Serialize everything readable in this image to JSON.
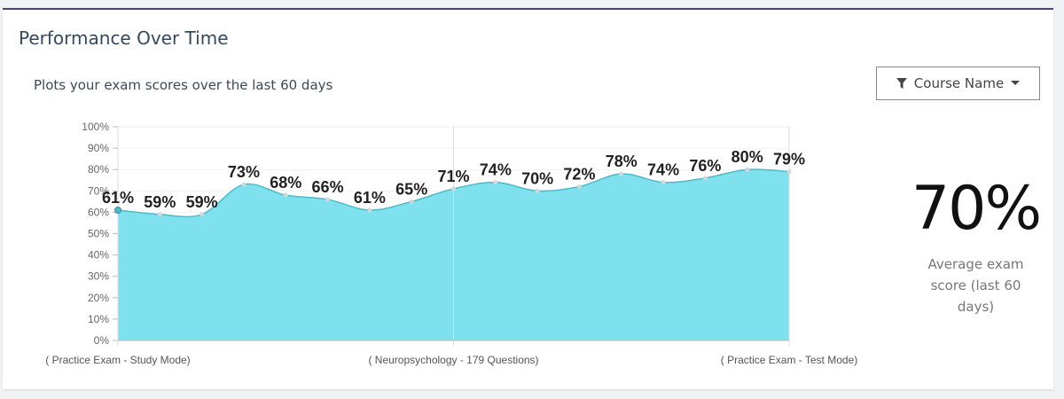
{
  "header": {
    "title": "Performance Over Time"
  },
  "subtitle": "Plots your exam scores over the last 60 days",
  "filter": {
    "label": "Course Name"
  },
  "chart_data": {
    "type": "area",
    "categories": [
      "( Practice Exam - Study Mode)",
      null,
      null,
      null,
      null,
      null,
      null,
      null,
      "( Neuropsychology - 179 Questions)",
      null,
      null,
      null,
      null,
      null,
      null,
      null,
      "( Practice Exam - Test Mode)"
    ],
    "values": [
      61,
      59,
      59,
      73,
      68,
      66,
      61,
      65,
      71,
      74,
      70,
      72,
      78,
      74,
      76,
      80,
      79
    ],
    "value_labels": [
      "61%",
      "59%",
      "59%",
      "73%",
      "68%",
      "66%",
      "61%",
      "65%",
      "71%",
      "74%",
      "70%",
      "72%",
      "78%",
      "74%",
      "76%",
      "80%",
      "79%"
    ],
    "color": "#7fe1ed",
    "line_color": "#4fb9c9",
    "ylim": [
      0,
      100
    ],
    "yticks": [
      {
        "value": 0,
        "label": "0%"
      },
      {
        "value": 10,
        "label": "10%"
      },
      {
        "value": 20,
        "label": "20%"
      },
      {
        "value": 30,
        "label": "30%"
      },
      {
        "value": 40,
        "label": "40%"
      },
      {
        "value": 50,
        "label": "50%"
      },
      {
        "value": 60,
        "label": "60%"
      },
      {
        "value": 70,
        "label": "70%"
      },
      {
        "value": 80,
        "label": "80%"
      },
      {
        "value": 90,
        "label": "90%"
      },
      {
        "value": 100,
        "label": "100%"
      }
    ],
    "grid": true
  },
  "summary": {
    "value": "70%",
    "label": "Average exam score (last 60 days)"
  }
}
